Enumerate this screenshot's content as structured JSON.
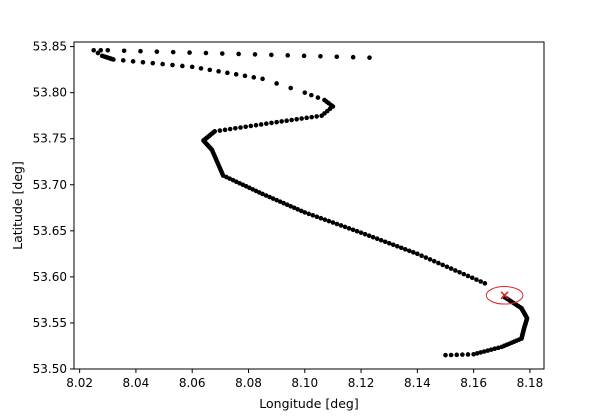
{
  "chart_data": {
    "type": "scatter",
    "title": "",
    "xlabel": "Longitude [deg]",
    "ylabel": "Latitude [deg]",
    "xlim": [
      8.018,
      8.185
    ],
    "ylim": [
      53.5,
      53.855
    ],
    "x_ticks": [
      "8.02",
      "8.04",
      "8.06",
      "8.08",
      "8.10",
      "8.12",
      "8.14",
      "8.16",
      "8.18"
    ],
    "y_ticks": [
      "53.50",
      "53.55",
      "53.60",
      "53.65",
      "53.70",
      "53.75",
      "53.80",
      "53.85"
    ],
    "grid": false,
    "legend": "none",
    "series": [
      {
        "marker_color": "#000000",
        "path": [
          [
            8.123,
            53.838
          ],
          [
            8.03,
            53.846
          ],
          [
            8.025,
            53.846
          ],
          [
            8.028,
            53.84
          ],
          [
            8.032,
            53.836
          ],
          [
            8.06,
            53.828
          ],
          [
            8.085,
            53.815
          ],
          [
            8.1,
            53.8
          ],
          [
            8.107,
            53.792
          ],
          [
            8.11,
            53.785
          ],
          [
            8.106,
            53.775
          ],
          [
            8.09,
            53.768
          ],
          [
            8.068,
            53.758
          ],
          [
            8.064,
            53.748
          ],
          [
            8.067,
            53.738
          ],
          [
            8.071,
            53.71
          ],
          [
            8.085,
            53.69
          ],
          [
            8.1,
            53.67
          ],
          [
            8.12,
            53.648
          ],
          [
            8.14,
            53.625
          ],
          [
            8.164,
            53.593
          ]
        ],
        "segment_counts": [
          16,
          2,
          2,
          8,
          8,
          8,
          3,
          3,
          4,
          4,
          9,
          12,
          12,
          10,
          14,
          12,
          12,
          14,
          14,
          16
        ]
      },
      {
        "marker_color": "#000000",
        "path": [
          [
            8.171,
            53.578
          ],
          [
            8.177,
            53.566
          ],
          [
            8.179,
            53.555
          ],
          [
            8.178,
            53.545
          ],
          [
            8.177,
            53.533
          ],
          [
            8.17,
            53.524
          ],
          [
            8.16,
            53.516
          ],
          [
            8.15,
            53.515
          ]
        ],
        "segment_counts": [
          10,
          10,
          8,
          10,
          8,
          8,
          5
        ]
      }
    ],
    "annotations": [
      {
        "type": "marker",
        "symbol": "x",
        "x": 8.171,
        "y": 53.58,
        "color": "#d62728"
      },
      {
        "type": "ellipse",
        "cx": 8.171,
        "cy": 53.58,
        "rx": 0.0065,
        "ry": 0.0095,
        "color": "#d62728"
      }
    ]
  }
}
